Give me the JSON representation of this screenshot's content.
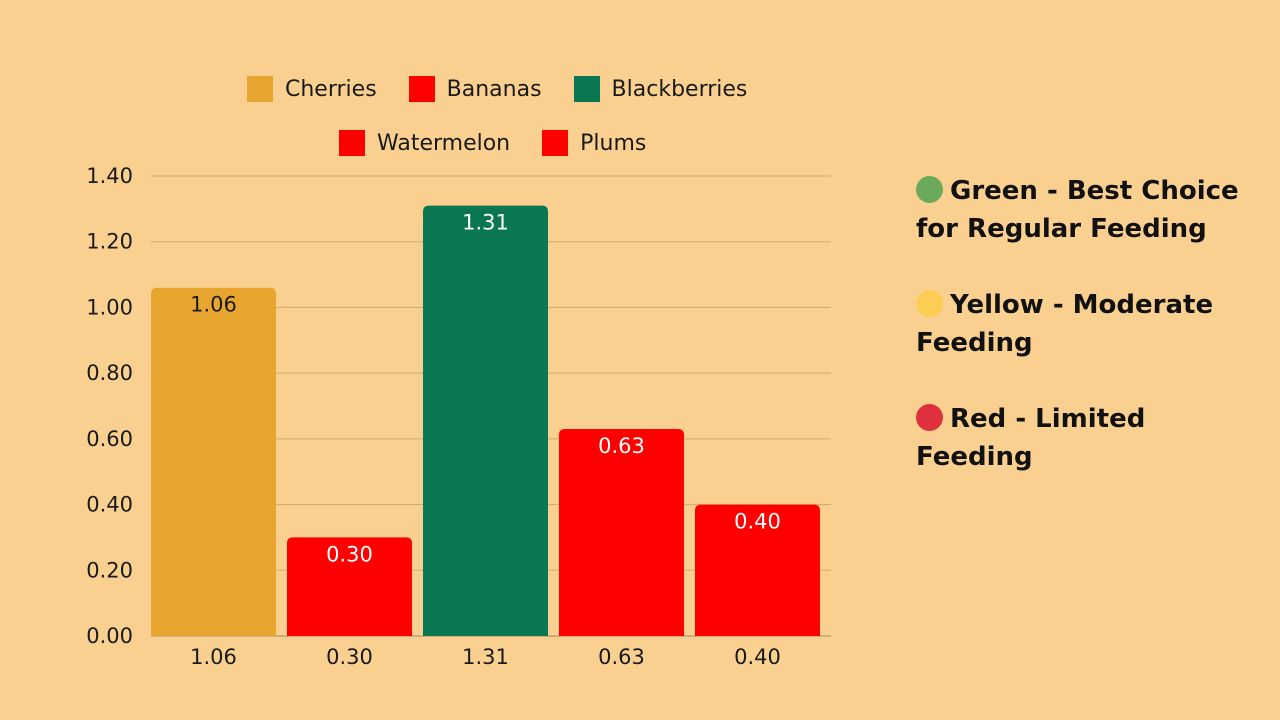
{
  "chart_data": {
    "type": "bar",
    "categories": [
      "1.06",
      "0.30",
      "1.31",
      "0.63",
      "0.40"
    ],
    "series": [
      {
        "name": "Cherries",
        "value": 1.06,
        "label": "1.06",
        "color": "#e8a530"
      },
      {
        "name": "Bananas",
        "value": 0.3,
        "label": "0.30",
        "color": "#ff0000"
      },
      {
        "name": "Blackberries",
        "value": 1.31,
        "label": "1.31",
        "color": "#0b7752"
      },
      {
        "name": "Watermelon",
        "value": 0.63,
        "label": "0.63",
        "color": "#ff0000"
      },
      {
        "name": "Plums",
        "value": 0.4,
        "label": "0.40",
        "color": "#ff0000"
      }
    ],
    "yticks": [
      "0.00",
      "0.20",
      "0.40",
      "0.60",
      "0.80",
      "1.00",
      "1.20",
      "1.40"
    ],
    "ylim": [
      0,
      1.4
    ],
    "grid": true,
    "legend_position": "top",
    "data_label_colors": [
      "#1a1a1a",
      "#ffffff",
      "#ffffff",
      "#ffffff",
      "#ffffff"
    ]
  },
  "legend": {
    "row1": [
      {
        "label": "Cherries",
        "color": "#e8a530"
      },
      {
        "label": "Bananas",
        "color": "#ff0000"
      },
      {
        "label": "Blackberries",
        "color": "#0b7752"
      }
    ],
    "row2": [
      {
        "label": "Watermelon",
        "color": "#ff0000"
      },
      {
        "label": "Plums",
        "color": "#ff0000"
      }
    ]
  },
  "key": {
    "items": [
      {
        "text": "Green - Best Choice for Regular Feeding",
        "color": "#6aaa5a"
      },
      {
        "text": "Yellow - Moderate Feeding",
        "color": "#fbcd55"
      },
      {
        "text": "Red - Limited Feeding",
        "color": "#e0303f"
      }
    ]
  }
}
